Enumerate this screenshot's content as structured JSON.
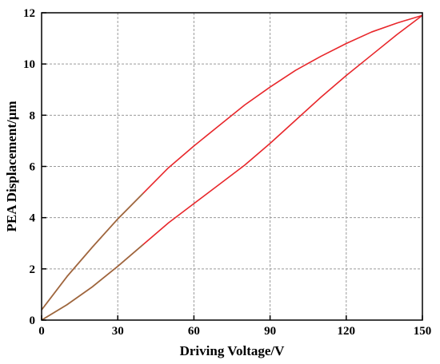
{
  "chart_data": {
    "type": "line",
    "title": "",
    "xlabel": "Driving Voltage/V",
    "ylabel": "PEA Displacement/μm",
    "xlim": [
      0,
      150
    ],
    "ylim": [
      0,
      12
    ],
    "xticks": [
      0,
      30,
      60,
      90,
      120,
      150
    ],
    "yticks": [
      0,
      2,
      4,
      6,
      8,
      10,
      12
    ],
    "grid": true,
    "legend": "none",
    "series": [
      {
        "color": "#e8272b",
        "x": [
          0,
          10,
          20,
          30,
          40,
          50,
          60,
          70,
          80,
          90,
          100,
          110,
          120,
          130,
          140,
          150
        ],
        "y": [
          0.0,
          0.6,
          1.3,
          2.1,
          2.95,
          3.8,
          4.55,
          5.3,
          6.05,
          6.9,
          7.8,
          8.7,
          9.55,
          10.35,
          11.15,
          11.9
        ]
      },
      {
        "color": "#e8272b",
        "x": [
          150,
          140,
          130,
          120,
          110,
          100,
          90,
          80,
          70,
          60,
          50,
          40,
          30,
          20,
          10,
          0
        ],
        "y": [
          11.9,
          11.6,
          11.25,
          10.8,
          10.3,
          9.75,
          9.1,
          8.4,
          7.6,
          6.8,
          5.95,
          4.95,
          3.95,
          2.85,
          1.7,
          0.4
        ]
      }
    ],
    "tail_color": "#9b6a3f"
  }
}
